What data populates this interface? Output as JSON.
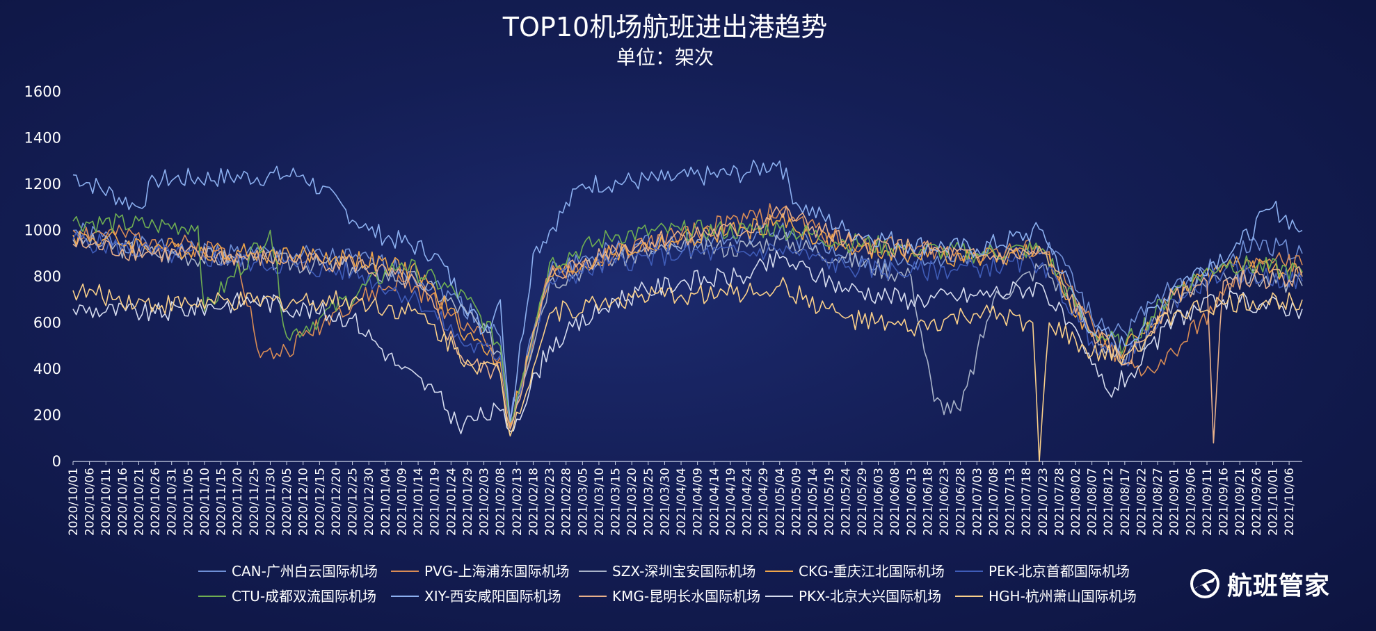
{
  "chart_data": {
    "type": "line",
    "title": "TOP10机场航班进出港趋势",
    "subtitle": "单位：架次",
    "ylim": [
      0,
      1600
    ],
    "yticks": [
      0,
      200,
      400,
      600,
      800,
      1000,
      1200,
      1400,
      1600
    ],
    "xlim": [
      "2020/10/01",
      "2021/10/10"
    ],
    "x_tick_labels": [
      "2020/10/01",
      "2020/10/06",
      "2020/10/11",
      "2020/10/16",
      "2020/10/21",
      "2020/10/26",
      "2020/10/31",
      "2020/11/05",
      "2020/11/10",
      "2020/11/15",
      "2020/11/20",
      "2020/11/25",
      "2020/11/30",
      "2020/12/05",
      "2020/12/10",
      "2020/12/15",
      "2020/12/20",
      "2020/12/25",
      "2020/12/30",
      "2021/01/04",
      "2021/01/09",
      "2021/01/14",
      "2021/01/19",
      "2021/01/24",
      "2021/01/29",
      "2021/02/03",
      "2021/02/08",
      "2021/02/13",
      "2021/02/18",
      "2021/02/23",
      "2021/02/28",
      "2021/03/05",
      "2021/03/10",
      "2021/03/15",
      "2021/03/20",
      "2021/03/25",
      "2021/03/30",
      "2021/04/04",
      "2021/04/09",
      "2021/04/14",
      "2021/04/19",
      "2021/04/24",
      "2021/04/29",
      "2021/05/04",
      "2021/05/09",
      "2021/05/14",
      "2021/05/19",
      "2021/05/24",
      "2021/05/29",
      "2021/06/03",
      "2021/06/08",
      "2021/06/13",
      "2021/06/18",
      "2021/06/23",
      "2021/06/28",
      "2021/07/03",
      "2021/07/08",
      "2021/07/13",
      "2021/07/18",
      "2021/07/23",
      "2021/07/28",
      "2021/08/02",
      "2021/08/07",
      "2021/08/12",
      "2021/08/17",
      "2021/08/22",
      "2021/08/27",
      "2021/09/01",
      "2021/09/06",
      "2021/09/11",
      "2021/09/16",
      "2021/09/21",
      "2021/09/26",
      "2021/10/01",
      "2021/10/06"
    ],
    "grid": false,
    "legend_position": "bottom",
    "series": [
      {
        "name": "CAN-广州白云国际机场",
        "color": "#6f8fd6",
        "x": [
          "2020/10/01",
          "2020/10/26",
          "2020/11/25",
          "2020/12/25",
          "2021/01/09",
          "2021/01/24",
          "2021/02/08",
          "2021/02/11",
          "2021/02/23",
          "2021/03/10",
          "2021/03/30",
          "2021/04/19",
          "2021/05/04",
          "2021/05/19",
          "2021/06/03",
          "2021/06/18",
          "2021/07/03",
          "2021/07/18",
          "2021/07/28",
          "2021/08/07",
          "2021/08/17",
          "2021/09/01",
          "2021/09/16",
          "2021/09/26",
          "2021/10/10"
        ],
        "values": [
          1000,
          920,
          900,
          880,
          830,
          720,
          540,
          180,
          820,
          900,
          950,
          960,
          1000,
          900,
          850,
          860,
          900,
          920,
          900,
          620,
          560,
          760,
          860,
          950,
          900
        ]
      },
      {
        "name": "PVG-上海浦东国际机场",
        "color": "#d98c55",
        "x": [
          "2020/10/01",
          "2020/10/26",
          "2020/11/20",
          "2020/11/27",
          "2020/12/05",
          "2020/12/20",
          "2021/01/09",
          "2021/01/29",
          "2021/02/08",
          "2021/02/11",
          "2021/02/23",
          "2021/03/15",
          "2021/04/04",
          "2021/04/24",
          "2021/05/04",
          "2021/05/24",
          "2021/06/13",
          "2021/07/03",
          "2021/07/23",
          "2021/08/02",
          "2021/08/12",
          "2021/08/22",
          "2021/09/01",
          "2021/09/16",
          "2021/09/26",
          "2021/10/10"
        ],
        "values": [
          1000,
          960,
          900,
          450,
          480,
          650,
          780,
          600,
          450,
          150,
          800,
          900,
          980,
          1050,
          1080,
          950,
          920,
          900,
          920,
          700,
          480,
          370,
          470,
          720,
          880,
          850
        ]
      },
      {
        "name": "SZX-深圳宝安国际机场",
        "color": "#a9b3c9",
        "x": [
          "2020/10/01",
          "2020/10/26",
          "2020/11/25",
          "2020/12/25",
          "2021/01/14",
          "2021/01/29",
          "2021/02/08",
          "2021/02/11",
          "2021/02/23",
          "2021/03/15",
          "2021/04/04",
          "2021/04/24",
          "2021/05/04",
          "2021/05/24",
          "2021/06/13",
          "2021/06/20",
          "2021/06/28",
          "2021/07/08",
          "2021/07/23",
          "2021/08/07",
          "2021/08/17",
          "2021/09/01",
          "2021/09/16",
          "2021/10/10"
        ],
        "values": [
          960,
          900,
          870,
          840,
          780,
          640,
          470,
          170,
          780,
          880,
          920,
          930,
          960,
          880,
          800,
          260,
          220,
          700,
          850,
          560,
          420,
          700,
          820,
          760
        ]
      },
      {
        "name": "CKG-重庆江北国际机场",
        "color": "#f0a64a",
        "x": [
          "2020/10/01",
          "2020/10/26",
          "2020/11/25",
          "2020/12/25",
          "2021/01/14",
          "2021/01/29",
          "2021/02/08",
          "2021/02/11",
          "2021/02/23",
          "2021/03/15",
          "2021/04/04",
          "2021/04/24",
          "2021/05/04",
          "2021/05/24",
          "2021/06/13",
          "2021/07/03",
          "2021/07/23",
          "2021/08/07",
          "2021/08/17",
          "2021/09/01",
          "2021/09/16",
          "2021/10/10"
        ],
        "values": [
          980,
          930,
          900,
          880,
          820,
          550,
          430,
          160,
          800,
          900,
          960,
          1000,
          1040,
          920,
          900,
          880,
          900,
          540,
          480,
          720,
          850,
          820
        ]
      },
      {
        "name": "PEK-北京首都国际机场",
        "color": "#3f5cb8",
        "x": [
          "2020/10/01",
          "2020/10/26",
          "2020/11/25",
          "2020/12/25",
          "2021/01/14",
          "2021/01/29",
          "2021/02/08",
          "2021/02/11",
          "2021/02/23",
          "2021/03/15",
          "2021/04/04",
          "2021/04/24",
          "2021/05/04",
          "2021/05/24",
          "2021/06/13",
          "2021/07/03",
          "2021/07/23",
          "2021/08/07",
          "2021/08/17",
          "2021/09/01",
          "2021/09/16",
          "2021/10/10"
        ],
        "values": [
          960,
          900,
          860,
          820,
          700,
          500,
          460,
          170,
          780,
          860,
          900,
          900,
          920,
          840,
          820,
          840,
          860,
          520,
          440,
          700,
          820,
          780
        ]
      },
      {
        "name": "CTU-成都双流国际机场",
        "color": "#6fae52",
        "x": [
          "2020/10/01",
          "2020/10/26",
          "2020/11/08",
          "2020/11/10",
          "2020/11/30",
          "2020/12/05",
          "2020/12/15",
          "2021/01/09",
          "2021/01/29",
          "2021/02/08",
          "2021/02/11",
          "2021/02/23",
          "2021/03/15",
          "2021/04/04",
          "2021/04/24",
          "2021/05/04",
          "2021/05/24",
          "2021/06/13",
          "2021/07/03",
          "2021/07/23",
          "2021/08/07",
          "2021/08/17",
          "2021/09/01",
          "2021/09/16",
          "2021/10/10"
        ],
        "values": [
          1040,
          1020,
          1020,
          650,
          1000,
          540,
          620,
          860,
          700,
          500,
          170,
          860,
          980,
          1000,
          1000,
          1010,
          950,
          920,
          900,
          920,
          560,
          500,
          740,
          860,
          820
        ]
      },
      {
        "name": "XIY-西安咸阳国际机场",
        "color": "#8cb0f0",
        "x": [
          "2020/10/01",
          "2020/10/21",
          "2020/10/26",
          "2020/12/10",
          "2020/12/30",
          "2021/01/19",
          "2021/02/03",
          "2021/02/08",
          "2021/02/11",
          "2021/02/18",
          "2021/03/05",
          "2021/03/30",
          "2021/04/24",
          "2021/05/04",
          "2021/05/09",
          "2021/05/24",
          "2021/06/13",
          "2021/07/03",
          "2021/07/23",
          "2021/08/07",
          "2021/08/17",
          "2021/09/01",
          "2021/09/21",
          "2021/10/01",
          "2021/10/10"
        ],
        "values": [
          1240,
          1100,
          1220,
          1240,
          1000,
          900,
          560,
          700,
          170,
          900,
          1200,
          1220,
          1250,
          1300,
          1120,
          1000,
          940,
          920,
          1000,
          560,
          500,
          760,
          940,
          1100,
          1000
        ]
      },
      {
        "name": "KMG-昆明长水国际机场",
        "color": "#e8b08a",
        "x": [
          "2020/10/01",
          "2020/10/26",
          "2020/11/25",
          "2020/12/25",
          "2021/01/14",
          "2021/01/29",
          "2021/02/08",
          "2021/02/11",
          "2021/02/23",
          "2021/03/15",
          "2021/04/04",
          "2021/04/24",
          "2021/05/04",
          "2021/05/24",
          "2021/06/13",
          "2021/07/03",
          "2021/07/23",
          "2021/08/07",
          "2021/08/17",
          "2021/09/01",
          "2021/09/11",
          "2021/09/13",
          "2021/09/16",
          "2021/10/10"
        ],
        "values": [
          940,
          900,
          880,
          860,
          760,
          420,
          380,
          140,
          800,
          920,
          980,
          1000,
          1080,
          950,
          920,
          880,
          900,
          560,
          420,
          720,
          780,
          80,
          780,
          800
        ]
      },
      {
        "name": "PKX-北京大兴国际机场",
        "color": "#d6dcef",
        "x": [
          "2020/10/01",
          "2020/10/26",
          "2020/11/25",
          "2020/12/25",
          "2021/01/09",
          "2021/01/19",
          "2021/01/26",
          "2021/02/08",
          "2021/02/11",
          "2021/02/23",
          "2021/03/15",
          "2021/04/04",
          "2021/04/24",
          "2021/05/04",
          "2021/05/24",
          "2021/06/13",
          "2021/07/03",
          "2021/07/23",
          "2021/08/07",
          "2021/08/12",
          "2021/08/22",
          "2021/09/01",
          "2021/09/16",
          "2021/10/10"
        ],
        "values": [
          660,
          640,
          700,
          620,
          400,
          300,
          160,
          220,
          130,
          500,
          700,
          780,
          800,
          880,
          750,
          700,
          720,
          760,
          420,
          300,
          420,
          620,
          700,
          660
        ]
      },
      {
        "name": "HGH-杭州萧山国际机场",
        "color": "#fad08a",
        "x": [
          "2020/10/01",
          "2020/10/26",
          "2020/11/25",
          "2020/12/25",
          "2021/01/14",
          "2021/01/29",
          "2021/02/08",
          "2021/02/11",
          "2021/02/23",
          "2021/03/15",
          "2021/04/04",
          "2021/04/24",
          "2021/05/04",
          "2021/05/24",
          "2021/06/13",
          "2021/07/03",
          "2021/07/20",
          "2021/07/22",
          "2021/07/25",
          "2021/08/07",
          "2021/08/17",
          "2021/09/01",
          "2021/09/16",
          "2021/10/10"
        ],
        "values": [
          740,
          680,
          690,
          700,
          640,
          440,
          380,
          110,
          640,
          700,
          720,
          730,
          760,
          620,
          570,
          640,
          600,
          0,
          600,
          460,
          460,
          640,
          680,
          700
        ]
      }
    ]
  },
  "brand": {
    "name": "航班管家",
    "icon": "airplane-logo-icon"
  }
}
